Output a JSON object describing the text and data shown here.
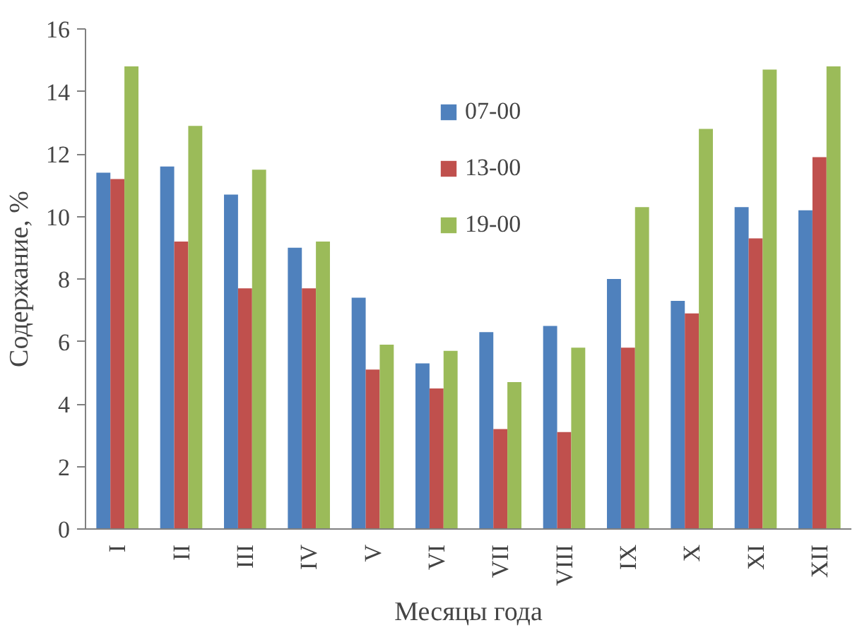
{
  "chart_data": {
    "type": "bar",
    "xlabel": "Месяцы года",
    "ylabel": "Содержание, %",
    "categories": [
      "I",
      "II",
      "III",
      "IV",
      "V",
      "VI",
      "VII",
      "VIII",
      "IX",
      "X",
      "XI",
      "XII"
    ],
    "series": [
      {
        "name": "07-00",
        "color": "#4f81bd",
        "values": [
          11.4,
          11.6,
          10.7,
          9.0,
          7.4,
          5.3,
          6.3,
          6.5,
          8.0,
          7.3,
          10.3,
          10.2
        ]
      },
      {
        "name": "13-00",
        "color": "#c0504d",
        "values": [
          11.2,
          9.2,
          7.7,
          7.7,
          5.1,
          4.5,
          3.2,
          3.1,
          5.8,
          6.9,
          9.3,
          11.9
        ]
      },
      {
        "name": "19-00",
        "color": "#9bbb59",
        "values": [
          14.8,
          12.9,
          11.5,
          9.2,
          5.9,
          5.7,
          4.7,
          5.8,
          10.3,
          12.8,
          14.7,
          14.8
        ]
      }
    ],
    "ylim": [
      0,
      16
    ],
    "yticks": [
      0,
      2,
      4,
      6,
      8,
      10,
      12,
      14,
      16
    ],
    "grid": false,
    "legend": "top"
  }
}
